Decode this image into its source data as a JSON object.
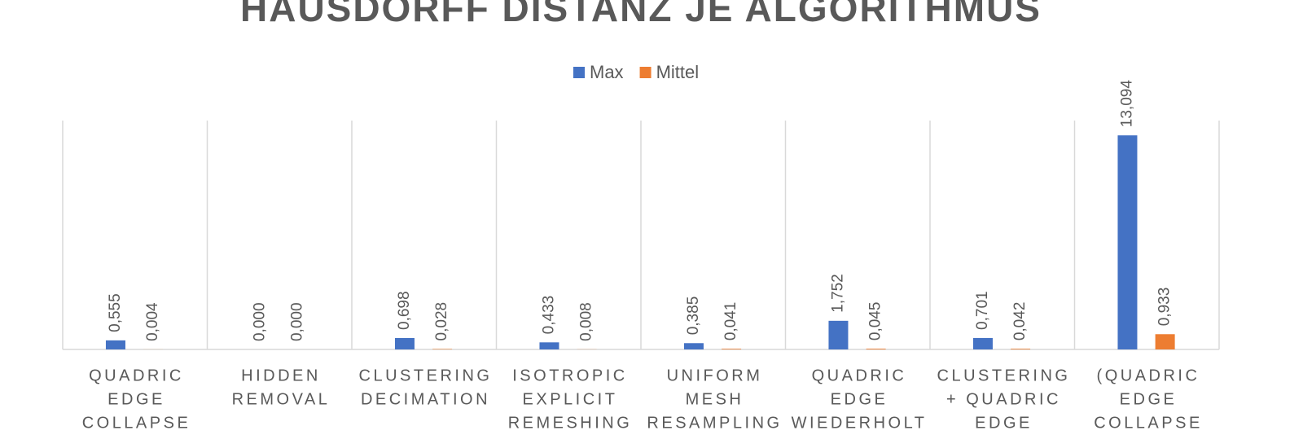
{
  "chart_data": {
    "type": "bar",
    "title": "HAUSDORFF DISTANZ JE ALGORITHMUS",
    "categories": [
      [
        "QUADRIC",
        "EDGE",
        "COLLAPSE"
      ],
      [
        "HIDDEN",
        "REMOVAL"
      ],
      [
        "CLUSTERING",
        "DECIMATION"
      ],
      [
        "ISOTROPIC",
        "EXPLICIT",
        "REMESHING"
      ],
      [
        "UNIFORM",
        "MESH",
        "RESAMPLING"
      ],
      [
        "QUADRIC",
        "EDGE",
        "WIEDERHOLT"
      ],
      [
        "CLUSTERING",
        "+ QUADRIC",
        "EDGE"
      ],
      [
        "(QUADRIC",
        "EDGE",
        "COLLAPSE"
      ]
    ],
    "series": [
      {
        "name": "Max",
        "color": "#4472c4",
        "values": [
          0.555,
          0,
          0.698,
          0.433,
          0.385,
          1.752,
          0.701,
          13.094
        ],
        "value_labels": [
          "0,555",
          "0,000",
          "0,698",
          "0,433",
          "0,385",
          "1,752",
          "0,701",
          "13,094"
        ]
      },
      {
        "name": "Mittel",
        "color": "#ed7d31",
        "values": [
          0.004,
          0,
          0.028,
          0.008,
          0.041,
          0.045,
          0.042,
          0.933
        ],
        "value_labels": [
          "0,004",
          "0,000",
          "0,028",
          "0,008",
          "0,041",
          "0,045",
          "0,042",
          "0,933"
        ]
      }
    ],
    "ylim": [
      0,
      14
    ]
  }
}
